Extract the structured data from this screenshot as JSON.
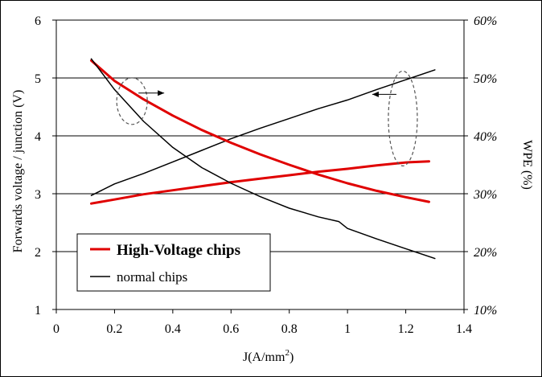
{
  "chart_data": {
    "type": "line",
    "xlabel": "J(A/mm",
    "xlabel_sup": "2",
    "xlabel_close": ")",
    "ylabel_left": "Forwards voltage / junction (V)",
    "ylabel_right": "WPE (%)",
    "xlim": [
      0,
      1.4
    ],
    "ylim_left": [
      1,
      6
    ],
    "ylim_right": [
      10,
      60
    ],
    "x_ticks": [
      "0",
      "0.2",
      "0.4",
      "0.6",
      "0.8",
      "1",
      "1.2",
      "1.4"
    ],
    "y_left_ticks": [
      "1",
      "2",
      "3",
      "4",
      "5",
      "6"
    ],
    "y_right_ticks": [
      "10%",
      "20%",
      "30%",
      "40%",
      "50%",
      "60%"
    ],
    "grid": "horizontal",
    "legend_position": "lower-left",
    "series": [
      {
        "name": "High-Voltage chips",
        "color": "#e00000",
        "quantity": "voltage",
        "axis": "left",
        "x": [
          0.12,
          0.2,
          0.3,
          0.4,
          0.5,
          0.6,
          0.7,
          0.8,
          0.9,
          1.0,
          1.1,
          1.2,
          1.28
        ],
        "y": [
          2.83,
          2.9,
          2.99,
          3.06,
          3.13,
          3.2,
          3.26,
          3.32,
          3.38,
          3.43,
          3.49,
          3.54,
          3.56
        ]
      },
      {
        "name": "normal chips",
        "color": "#000000",
        "quantity": "voltage",
        "axis": "left",
        "x": [
          0.12,
          0.2,
          0.3,
          0.4,
          0.5,
          0.6,
          0.7,
          0.8,
          0.9,
          1.0,
          1.1,
          1.2,
          1.3
        ],
        "y": [
          2.97,
          3.17,
          3.35,
          3.55,
          3.75,
          3.95,
          4.13,
          4.3,
          4.47,
          4.62,
          4.8,
          4.97,
          5.14
        ]
      },
      {
        "name": "High-Voltage chips",
        "color": "#e00000",
        "quantity": "WPE",
        "axis": "right",
        "x": [
          0.12,
          0.2,
          0.3,
          0.4,
          0.5,
          0.6,
          0.7,
          0.8,
          0.9,
          1.0,
          1.1,
          1.2,
          1.28
        ],
        "y": [
          53,
          49.5,
          46.3,
          43.5,
          41,
          38.8,
          36.8,
          35,
          33.3,
          31.8,
          30.5,
          29.4,
          28.6
        ]
      },
      {
        "name": "normal chips",
        "color": "#000000",
        "quantity": "WPE",
        "axis": "right",
        "x": [
          0.12,
          0.2,
          0.3,
          0.4,
          0.5,
          0.6,
          0.7,
          0.8,
          0.9,
          0.97,
          1.0,
          1.1,
          1.2,
          1.3
        ],
        "y": [
          53.3,
          48,
          42.5,
          38,
          34.5,
          31.8,
          29.5,
          27.5,
          26,
          25.2,
          24,
          22.2,
          20.5,
          18.8
        ]
      }
    ],
    "annotations": [
      {
        "shape": "dashed-ellipse",
        "arrow": "right",
        "at_x": 0.26,
        "at_y_left": 4.6,
        "meaning": "refers to right axis (WPE)"
      },
      {
        "shape": "dashed-ellipse",
        "arrow": "left",
        "at_x": 1.19,
        "at_y_left": 4.3,
        "meaning": "refers to left axis (voltage)"
      }
    ]
  }
}
